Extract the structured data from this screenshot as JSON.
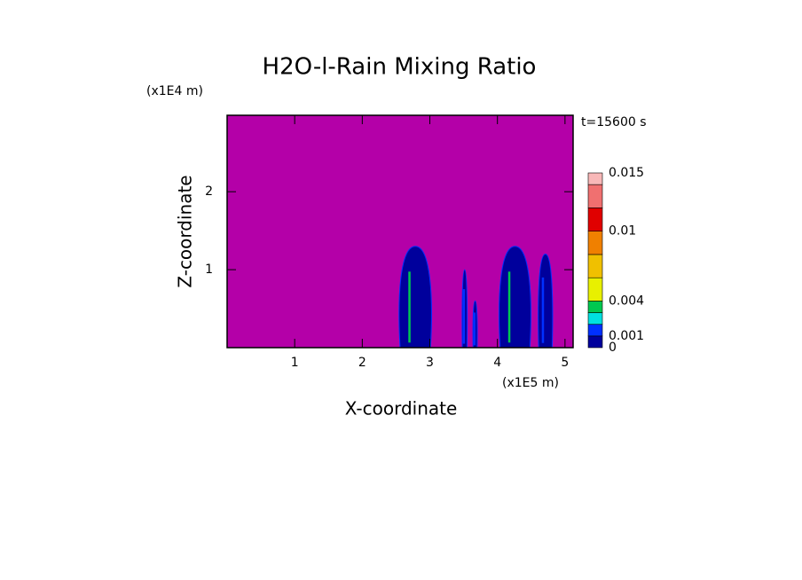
{
  "chart_data": {
    "type": "contour",
    "title": "H2O-l-Rain Mixing Ratio",
    "time_label": "t=15600 s",
    "x_label": "X-coordinate",
    "y_label": "Z-coordinate",
    "x_scale_label": "(x1E5 m)",
    "y_scale_label": "(x1E4 m)",
    "xlim": [
      0,
      5.12
    ],
    "ylim": [
      0,
      2.98
    ],
    "xticks": [
      1,
      2,
      3,
      4,
      5
    ],
    "yticks": [
      1,
      2
    ],
    "background_color": "#b400a8",
    "levels": [
      0,
      0.001,
      0.002,
      0.003,
      0.004,
      0.006,
      0.008,
      0.01,
      0.012,
      0.014,
      0.015
    ],
    "level_colors": [
      "#00009c",
      "#0030ff",
      "#00e0e0",
      "#00c850",
      "#e8f000",
      "#f0c000",
      "#f08000",
      "#e00000",
      "#f07070",
      "#f8b8b8"
    ],
    "colorbar_ticks": [
      0.015,
      0.01,
      0.004,
      0.001,
      0
    ],
    "cells": [
      {
        "x": [
          2.56,
          3.01
        ],
        "top": 1.3,
        "peak": 0.003
      },
      {
        "x": [
          3.48,
          3.55
        ],
        "top": 1.0,
        "peak": 0.001
      },
      {
        "x": [
          3.64,
          3.7
        ],
        "top": 0.6,
        "peak": 0.001
      },
      {
        "x": [
          4.04,
          4.48
        ],
        "top": 1.3,
        "peak": 0.003
      },
      {
        "x": [
          4.61,
          4.81
        ],
        "top": 1.2,
        "peak": 0.001
      }
    ]
  }
}
